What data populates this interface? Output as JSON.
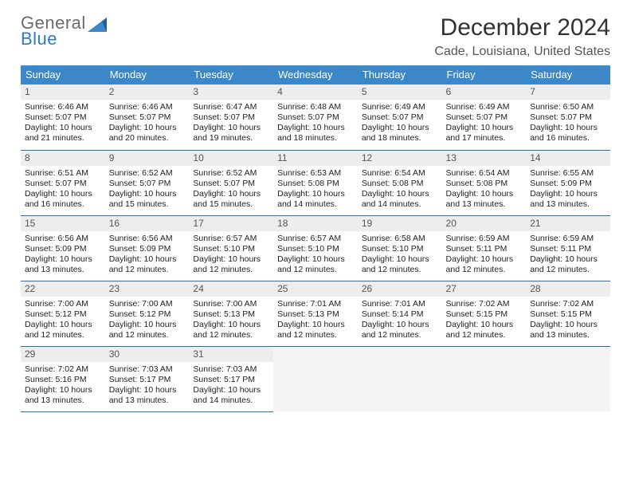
{
  "logo": {
    "top": "General",
    "bottom": "Blue"
  },
  "title": "December 2024",
  "location": "Cade, Louisiana, United States",
  "colors": {
    "header_bg": "#3b87c8",
    "header_text": "#ffffff",
    "row_border": "#2f6ea8",
    "daynum_bg": "#ededed",
    "logo_gray": "#6b6b6b",
    "logo_blue": "#2f78c3"
  },
  "weekdays": [
    "Sunday",
    "Monday",
    "Tuesday",
    "Wednesday",
    "Thursday",
    "Friday",
    "Saturday"
  ],
  "days": [
    {
      "n": 1,
      "sr": "6:46 AM",
      "ss": "5:07 PM",
      "dl": "10 hours and 21 minutes."
    },
    {
      "n": 2,
      "sr": "6:46 AM",
      "ss": "5:07 PM",
      "dl": "10 hours and 20 minutes."
    },
    {
      "n": 3,
      "sr": "6:47 AM",
      "ss": "5:07 PM",
      "dl": "10 hours and 19 minutes."
    },
    {
      "n": 4,
      "sr": "6:48 AM",
      "ss": "5:07 PM",
      "dl": "10 hours and 18 minutes."
    },
    {
      "n": 5,
      "sr": "6:49 AM",
      "ss": "5:07 PM",
      "dl": "10 hours and 18 minutes."
    },
    {
      "n": 6,
      "sr": "6:49 AM",
      "ss": "5:07 PM",
      "dl": "10 hours and 17 minutes."
    },
    {
      "n": 7,
      "sr": "6:50 AM",
      "ss": "5:07 PM",
      "dl": "10 hours and 16 minutes."
    },
    {
      "n": 8,
      "sr": "6:51 AM",
      "ss": "5:07 PM",
      "dl": "10 hours and 16 minutes."
    },
    {
      "n": 9,
      "sr": "6:52 AM",
      "ss": "5:07 PM",
      "dl": "10 hours and 15 minutes."
    },
    {
      "n": 10,
      "sr": "6:52 AM",
      "ss": "5:07 PM",
      "dl": "10 hours and 15 minutes."
    },
    {
      "n": 11,
      "sr": "6:53 AM",
      "ss": "5:08 PM",
      "dl": "10 hours and 14 minutes."
    },
    {
      "n": 12,
      "sr": "6:54 AM",
      "ss": "5:08 PM",
      "dl": "10 hours and 14 minutes."
    },
    {
      "n": 13,
      "sr": "6:54 AM",
      "ss": "5:08 PM",
      "dl": "10 hours and 13 minutes."
    },
    {
      "n": 14,
      "sr": "6:55 AM",
      "ss": "5:09 PM",
      "dl": "10 hours and 13 minutes."
    },
    {
      "n": 15,
      "sr": "6:56 AM",
      "ss": "5:09 PM",
      "dl": "10 hours and 13 minutes."
    },
    {
      "n": 16,
      "sr": "6:56 AM",
      "ss": "5:09 PM",
      "dl": "10 hours and 12 minutes."
    },
    {
      "n": 17,
      "sr": "6:57 AM",
      "ss": "5:10 PM",
      "dl": "10 hours and 12 minutes."
    },
    {
      "n": 18,
      "sr": "6:57 AM",
      "ss": "5:10 PM",
      "dl": "10 hours and 12 minutes."
    },
    {
      "n": 19,
      "sr": "6:58 AM",
      "ss": "5:10 PM",
      "dl": "10 hours and 12 minutes."
    },
    {
      "n": 20,
      "sr": "6:59 AM",
      "ss": "5:11 PM",
      "dl": "10 hours and 12 minutes."
    },
    {
      "n": 21,
      "sr": "6:59 AM",
      "ss": "5:11 PM",
      "dl": "10 hours and 12 minutes."
    },
    {
      "n": 22,
      "sr": "7:00 AM",
      "ss": "5:12 PM",
      "dl": "10 hours and 12 minutes."
    },
    {
      "n": 23,
      "sr": "7:00 AM",
      "ss": "5:12 PM",
      "dl": "10 hours and 12 minutes."
    },
    {
      "n": 24,
      "sr": "7:00 AM",
      "ss": "5:13 PM",
      "dl": "10 hours and 12 minutes."
    },
    {
      "n": 25,
      "sr": "7:01 AM",
      "ss": "5:13 PM",
      "dl": "10 hours and 12 minutes."
    },
    {
      "n": 26,
      "sr": "7:01 AM",
      "ss": "5:14 PM",
      "dl": "10 hours and 12 minutes."
    },
    {
      "n": 27,
      "sr": "7:02 AM",
      "ss": "5:15 PM",
      "dl": "10 hours and 12 minutes."
    },
    {
      "n": 28,
      "sr": "7:02 AM",
      "ss": "5:15 PM",
      "dl": "10 hours and 13 minutes."
    },
    {
      "n": 29,
      "sr": "7:02 AM",
      "ss": "5:16 PM",
      "dl": "10 hours and 13 minutes."
    },
    {
      "n": 30,
      "sr": "7:03 AM",
      "ss": "5:17 PM",
      "dl": "10 hours and 13 minutes."
    },
    {
      "n": 31,
      "sr": "7:03 AM",
      "ss": "5:17 PM",
      "dl": "10 hours and 14 minutes."
    }
  ],
  "labels": {
    "sunrise": "Sunrise:",
    "sunset": "Sunset:",
    "daylight": "Daylight:"
  }
}
